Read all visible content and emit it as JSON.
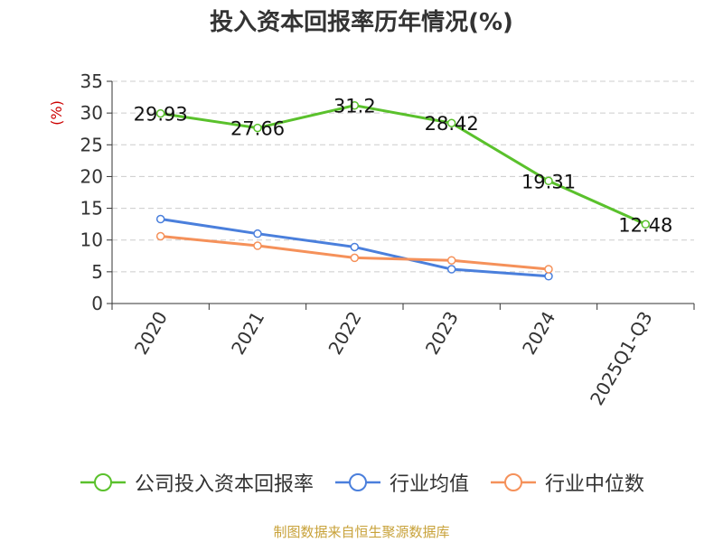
{
  "chart_data": {
    "type": "line",
    "title": "投入资本回报率历年情况(%)",
    "ylabel": "(%)",
    "xlabel": "",
    "categories": [
      "2020",
      "2021",
      "2022",
      "2023",
      "2024",
      "2025Q1-Q3"
    ],
    "ylim": [
      0,
      35
    ],
    "yticks": [
      0,
      5,
      10,
      15,
      20,
      25,
      30,
      35
    ],
    "grid": "horizontal dashed",
    "legend_position": "bottom",
    "series": [
      {
        "name": "公司投入资本回报率",
        "color": "#5ac12c",
        "values": [
          29.93,
          27.66,
          31.2,
          28.42,
          19.31,
          12.48
        ],
        "labels": [
          "29.93",
          "27.66",
          "31.2",
          "28.42",
          "19.31",
          "12.48"
        ]
      },
      {
        "name": "行业均值",
        "color": "#4a7fdc",
        "values": [
          13.3,
          11.0,
          8.9,
          5.4,
          4.3,
          null
        ]
      },
      {
        "name": "行业中位数",
        "color": "#f5915a",
        "values": [
          10.6,
          9.1,
          7.2,
          6.8,
          5.4,
          null
        ]
      }
    ]
  },
  "source_text": "制图数据来自恒生聚源数据库"
}
